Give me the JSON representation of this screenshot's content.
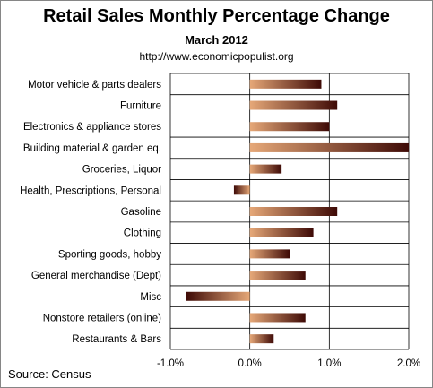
{
  "chart_data": {
    "type": "bar",
    "orientation": "horizontal",
    "title": "Retail Sales Monthly  Percentage Change",
    "subtitle": "March 2012",
    "url": "http://www.economicpopulist.org",
    "source": "Source:  Census",
    "categories": [
      "Motor vehicle & parts dealers",
      "Furniture",
      "Electronics & appliance stores",
      "Building material & garden eq.",
      "Groceries, Liquor",
      "Health, Prescriptions, Personal",
      "Gasoline",
      "Clothing",
      "Sporting goods, hobby",
      "General merchandise (Dept)",
      "Misc",
      "Nonstore retailers (online)",
      "Restaurants & Bars"
    ],
    "values": [
      0.9,
      1.1,
      1.0,
      2.0,
      0.4,
      -0.2,
      1.1,
      0.8,
      0.5,
      0.7,
      -0.8,
      0.7,
      0.3
    ],
    "xlim": [
      -1.0,
      2.0
    ],
    "xticks": [
      -1.0,
      0.0,
      1.0,
      2.0
    ],
    "xtick_labels": [
      "-1.0%",
      "0.0%",
      "1.0%",
      "2.0%"
    ],
    "colors": {
      "bar_light": "#e0a06e",
      "bar_dark": "#3e0a06",
      "grid": "#000000"
    }
  }
}
